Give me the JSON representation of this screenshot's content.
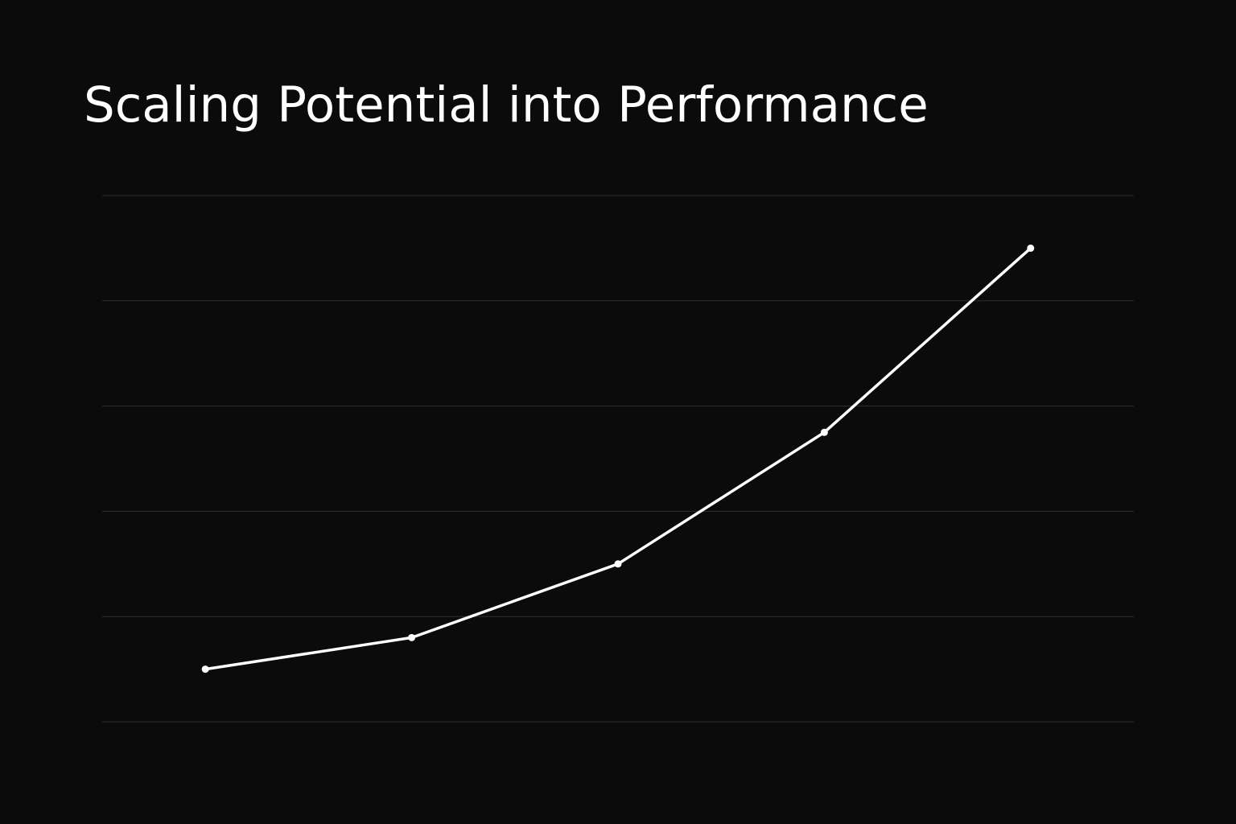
{
  "chart_data": {
    "type": "line",
    "title": "Scaling Potential into Performance",
    "xlabel": "",
    "ylabel": "",
    "x": [
      1,
      2,
      3,
      4,
      5
    ],
    "series": [
      {
        "values": [
          0.5,
          0.8,
          1.5,
          2.75,
          4.5
        ]
      }
    ],
    "ylim": [
      0,
      5
    ],
    "xlim": [
      0.5,
      5.5
    ],
    "grid": true,
    "colors": {
      "background": "#0b0b0b",
      "line": "#ffffff",
      "grid": "#2e2e2e",
      "text": "#ffffff"
    }
  }
}
